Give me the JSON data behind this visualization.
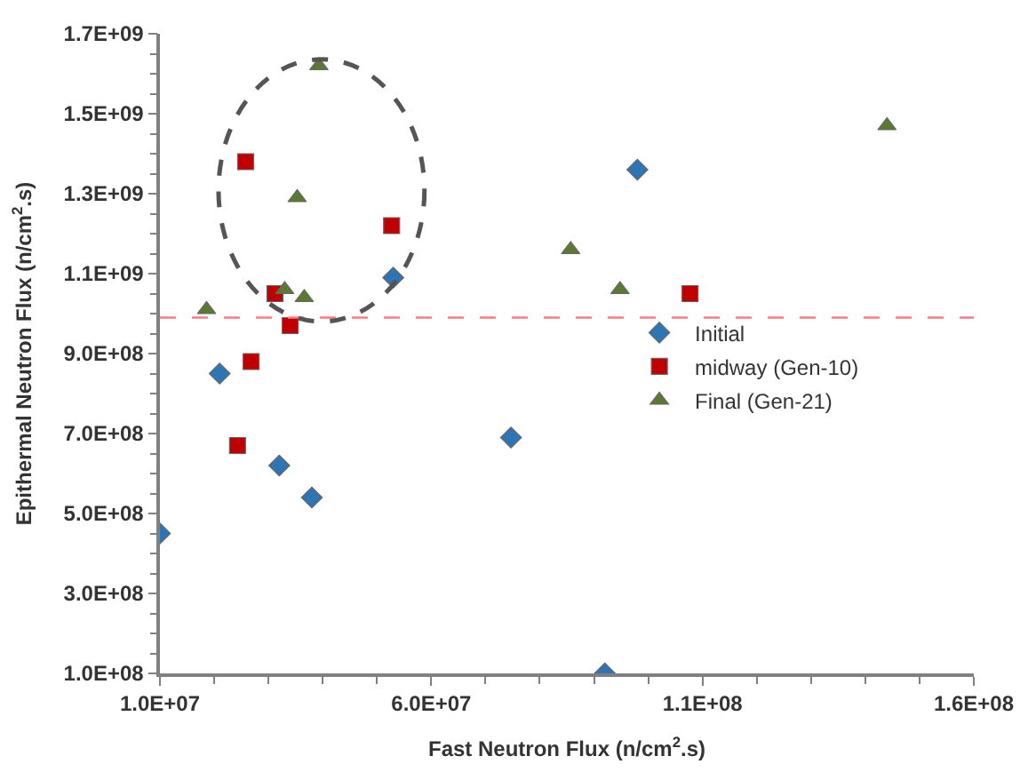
{
  "chart_data": {
    "type": "scatter",
    "xlabel": "Fast Neutron Flux (n/cm$^{2}$.s)",
    "ylabel": "Epithermal Neutron Flux (n/cm$^{2}$.s)",
    "series": [
      {
        "name": "Initial",
        "color": "#2e75b6",
        "marker": "diamond",
        "x": [
          10000000,
          21000000,
          32000000,
          38000000,
          53000000,
          74700000,
          98000000,
          92000000
        ],
        "values": [
          450000000,
          850000000,
          620000000,
          540000000,
          1090000000,
          690000000,
          1360000000,
          100000000
        ]
      },
      {
        "name": "midway (Gen-10)",
        "color": "#c00000",
        "marker": "square",
        "x": [
          25800000,
          52700000,
          31200000,
          34000000,
          26800000,
          24300000,
          107700000
        ],
        "values": [
          1380000000,
          1220000000,
          1050000000,
          970000000,
          880000000,
          670000000,
          1050000000
        ]
      },
      {
        "name": "Final (Gen-21)",
        "color": "#5a7a32",
        "marker": "triangle",
        "x": [
          39300000,
          35300000,
          33000000,
          36600000,
          18600000,
          85700000,
          94800000,
          144000000
        ],
        "values": [
          1620000000,
          1290000000,
          1060000000,
          1040000000,
          1010000000,
          1160000000,
          1060000000,
          1470000000
        ]
      }
    ],
    "xlim": [
      10000000,
      160000000
    ],
    "xticks": [
      {
        "value": 10000000,
        "label": "1.0E+07"
      },
      {
        "value": 60000000,
        "label": "6.0E+07"
      },
      {
        "value": 110000000,
        "label": "1.1E+08"
      },
      {
        "value": 160000000,
        "label": "1.6E+08"
      }
    ],
    "ylim": [
      100000000,
      1700000000
    ],
    "yticks": [
      {
        "value": 100000000,
        "label": "1.0E+08"
      },
      {
        "value": 300000000,
        "label": "3.0E+08"
      },
      {
        "value": 500000000,
        "label": "5.0E+08"
      },
      {
        "value": 700000000,
        "label": "7.0E+08"
      },
      {
        "value": 900000000,
        "label": "9.0E+08"
      },
      {
        "value": 1100000000,
        "label": "1.1E+09"
      },
      {
        "value": 1300000000,
        "label": "1.3E+09"
      },
      {
        "value": 1500000000,
        "label": "1.5E+09"
      },
      {
        "value": 1700000000,
        "label": "1.7E+09"
      }
    ],
    "ref_lines": [
      {
        "axis": "y",
        "value": 990000000,
        "color": "#ff7c80",
        "line_style": "dashed"
      }
    ],
    "legend": "right"
  }
}
